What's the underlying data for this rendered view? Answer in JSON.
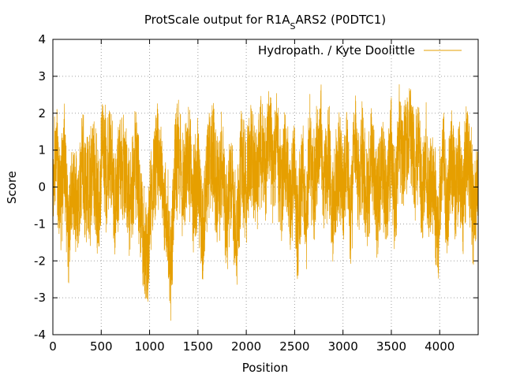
{
  "chart_data": {
    "type": "line",
    "title": "ProtScale output for R1A",
    "title_subscript": "S",
    "title_suffix": "ARS2 (P0DTC1)",
    "xlabel": "Position",
    "ylabel": "Score",
    "xlim": [
      0,
      4398
    ],
    "ylim": [
      -4,
      4
    ],
    "xticks": [
      0,
      500,
      1000,
      1500,
      2000,
      2500,
      3000,
      3500,
      4000
    ],
    "yticks": [
      -4,
      -3,
      -2,
      -1,
      0,
      1,
      2,
      3,
      4
    ],
    "grid": true,
    "legend_position": "top-right",
    "series": [
      {
        "name": "Hydropath. / Kyte  Doolittle",
        "color": "#e69f00",
        "x_start": 5,
        "x_end": 4394,
        "anchors": [
          [
            5,
            0.1
          ],
          [
            40,
            1.4
          ],
          [
            80,
            -0.8
          ],
          [
            120,
            1.7
          ],
          [
            160,
            -2.6
          ],
          [
            200,
            0.2
          ],
          [
            260,
            -1.3
          ],
          [
            300,
            1.1
          ],
          [
            360,
            -0.5
          ],
          [
            420,
            0.9
          ],
          [
            480,
            -1.0
          ],
          [
            510,
            2.4
          ],
          [
            560,
            0.3
          ],
          [
            600,
            1.6
          ],
          [
            640,
            -1.2
          ],
          [
            700,
            1.8
          ],
          [
            750,
            0.2
          ],
          [
            800,
            -1.1
          ],
          [
            850,
            1.5
          ],
          [
            900,
            -0.6
          ],
          [
            950,
            -3.0
          ],
          [
            980,
            -3.4
          ],
          [
            1000,
            -1.5
          ],
          [
            1050,
            0.8
          ],
          [
            1100,
            1.4
          ],
          [
            1150,
            -1.0
          ],
          [
            1200,
            -2.4
          ],
          [
            1220,
            -3.8
          ],
          [
            1260,
            0.4
          ],
          [
            1300,
            1.9
          ],
          [
            1350,
            -0.4
          ],
          [
            1400,
            1.6
          ],
          [
            1450,
            -0.9
          ],
          [
            1500,
            0.7
          ],
          [
            1550,
            -2.7
          ],
          [
            1600,
            0.8
          ],
          [
            1650,
            1.9
          ],
          [
            1700,
            -0.3
          ],
          [
            1750,
            1.1
          ],
          [
            1800,
            -2.0
          ],
          [
            1850,
            0.4
          ],
          [
            1900,
            -2.9
          ],
          [
            1950,
            1.2
          ],
          [
            2000,
            -0.3
          ],
          [
            2050,
            1.8
          ],
          [
            2100,
            0.2
          ],
          [
            2150,
            2.0
          ],
          [
            2200,
            0.5
          ],
          [
            2240,
            2.9
          ],
          [
            2280,
            0.6
          ],
          [
            2320,
            2.2
          ],
          [
            2360,
            -0.4
          ],
          [
            2400,
            1.6
          ],
          [
            2450,
            -0.7
          ],
          [
            2500,
            0.8
          ],
          [
            2530,
            -2.5
          ],
          [
            2580,
            0.9
          ],
          [
            2620,
            -1.5
          ],
          [
            2660,
            1.7
          ],
          [
            2700,
            -0.2
          ],
          [
            2740,
            1.9
          ],
          [
            2770,
            3.3
          ],
          [
            2800,
            -0.6
          ],
          [
            2850,
            1.8
          ],
          [
            2900,
            -1.5
          ],
          [
            2950,
            1.3
          ],
          [
            3000,
            -0.4
          ],
          [
            3040,
            2.0
          ],
          [
            3080,
            -1.7
          ],
          [
            3120,
            2.4
          ],
          [
            3160,
            0.2
          ],
          [
            3200,
            1.6
          ],
          [
            3250,
            -0.7
          ],
          [
            3300,
            2.1
          ],
          [
            3350,
            -1.0
          ],
          [
            3400,
            0.9
          ],
          [
            3450,
            0.0
          ],
          [
            3500,
            1.7
          ],
          [
            3540,
            -1.2
          ],
          [
            3580,
            2.9
          ],
          [
            3620,
            1.0
          ],
          [
            3660,
            2.5
          ],
          [
            3700,
            3.0
          ],
          [
            3740,
            0.6
          ],
          [
            3780,
            1.9
          ],
          [
            3820,
            -0.8
          ],
          [
            3860,
            1.3
          ],
          [
            3900,
            -0.4
          ],
          [
            3940,
            0.5
          ],
          [
            3970,
            -3.0
          ],
          [
            4000,
            -0.9
          ],
          [
            4040,
            1.9
          ],
          [
            4080,
            -1.6
          ],
          [
            4120,
            1.7
          ],
          [
            4160,
            -0.4
          ],
          [
            4200,
            1.2
          ],
          [
            4240,
            -1.0
          ],
          [
            4280,
            1.9
          ],
          [
            4320,
            0.3
          ],
          [
            4360,
            -1.8
          ],
          [
            4394,
            1.0
          ]
        ]
      }
    ]
  }
}
